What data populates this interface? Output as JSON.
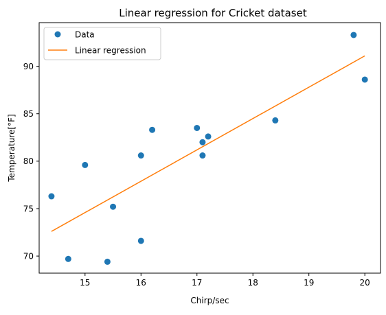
{
  "chart_data": {
    "type": "scatter",
    "title": "Linear regression for Cricket dataset",
    "xlabel": "Chirp/sec",
    "ylabel": "Temperature[°F]",
    "xlim": [
      14.18,
      20.28
    ],
    "ylim": [
      68.2,
      94.6
    ],
    "xticks": [
      15,
      16,
      17,
      18,
      19,
      20
    ],
    "yticks": [
      70,
      75,
      80,
      85,
      90
    ],
    "grid": false,
    "legend": {
      "position": "top-left"
    },
    "series": [
      {
        "name": "Data",
        "kind": "scatter",
        "color": "#1f77b4",
        "points": [
          {
            "x": 20.0,
            "y": 88.6
          },
          {
            "x": 16.0,
            "y": 71.6
          },
          {
            "x": 19.8,
            "y": 93.3
          },
          {
            "x": 18.4,
            "y": 84.3
          },
          {
            "x": 17.1,
            "y": 80.6
          },
          {
            "x": 15.5,
            "y": 75.2
          },
          {
            "x": 14.7,
            "y": 69.7
          },
          {
            "x": 17.1,
            "y": 82.0
          },
          {
            "x": 15.4,
            "y": 69.4
          },
          {
            "x": 16.2,
            "y": 83.3
          },
          {
            "x": 15.0,
            "y": 79.6
          },
          {
            "x": 17.2,
            "y": 82.6
          },
          {
            "x": 16.0,
            "y": 80.6
          },
          {
            "x": 17.0,
            "y": 83.5
          },
          {
            "x": 14.4,
            "y": 76.3
          }
        ]
      },
      {
        "name": "Linear regression",
        "kind": "line",
        "color": "#ff7f0e",
        "points": [
          {
            "x": 14.4,
            "y": 72.6
          },
          {
            "x": 20.0,
            "y": 91.1
          }
        ]
      }
    ]
  }
}
